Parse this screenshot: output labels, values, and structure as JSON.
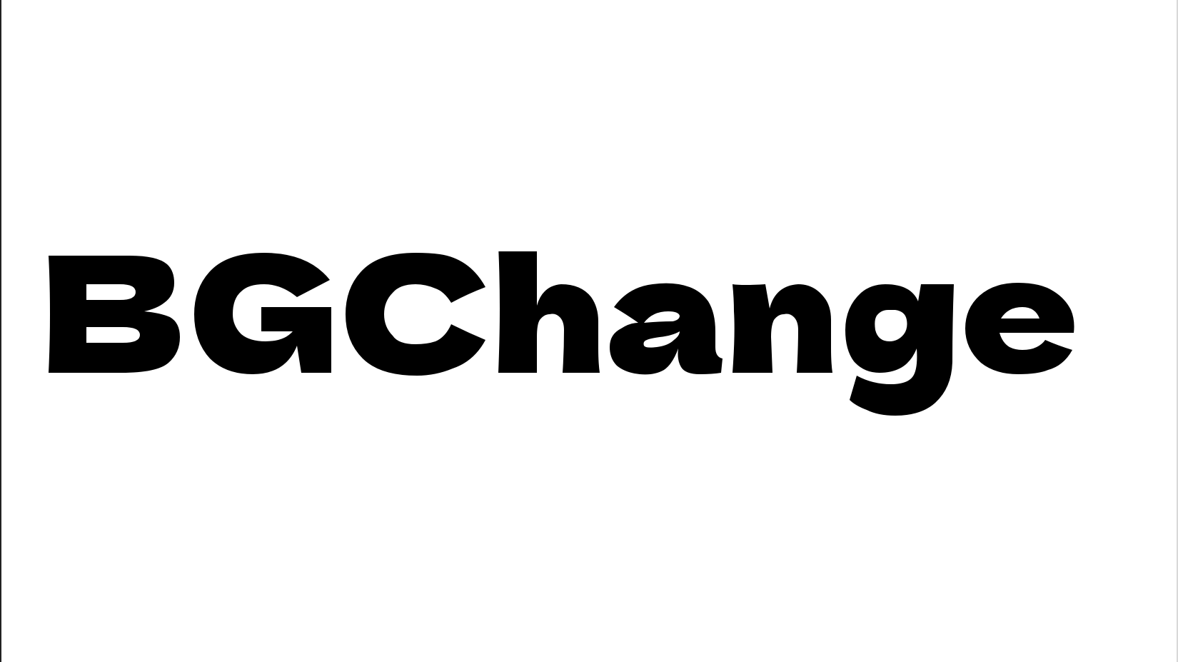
{
  "logo": {
    "text": "BGChange",
    "color": "#000000"
  },
  "background_color": "#ffffff"
}
